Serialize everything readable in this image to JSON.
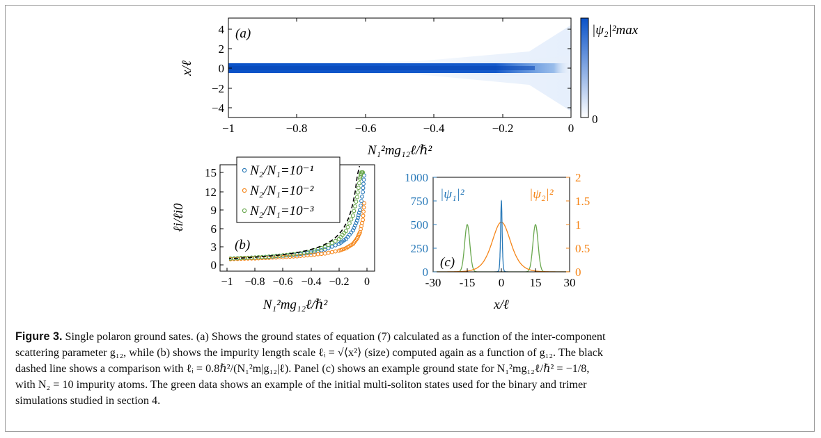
{
  "colors": {
    "blue": "#2a7ab9",
    "orange": "#f58518",
    "green": "#6aa84f",
    "link": "#1f6fb4",
    "heat": "#0a52c8"
  },
  "panel_a": {
    "label": "(a)",
    "ylabel": "x/ℓ",
    "xlabel": "N₁²mg₁₂ℓ/ℏ²",
    "colorbar_top": "|ψ₂|²max",
    "colorbar_bottom": "0"
  },
  "panel_b": {
    "label": "(b)",
    "ylabel": "ℓi/ℓi0",
    "xlabel": "N₁²mg₁₂ℓ/ℏ²",
    "legend": [
      "N₂/N₁=10⁻¹",
      "N₂/N₁=10⁻²",
      "N₂/N₁=10⁻³"
    ]
  },
  "panel_c": {
    "label": "(c)",
    "xlabel": "x/ℓ",
    "left_series": "|ψ₁|²",
    "right_series": "|ψ₂|²"
  },
  "chart_data": [
    {
      "type": "heatmap",
      "xlim": [
        -1,
        0
      ],
      "ylim": [
        -5,
        5
      ],
      "xticks": [
        "−1",
        "−0.8",
        "−0.6",
        "−0.4",
        "−0.2",
        "0"
      ],
      "yticks": [
        "4",
        "2",
        "0",
        "−2",
        "−4"
      ],
      "colorbar": [
        "0",
        "|ψ₂|²max"
      ]
    },
    {
      "type": "scatter",
      "xlim": [
        -1.05,
        0.05
      ],
      "ylim": [
        0,
        15
      ],
      "xticks": [
        "−1",
        "−0.8",
        "−0.6",
        "−0.4",
        "−0.2",
        "0"
      ],
      "yticks": [
        "0",
        "3",
        "6",
        "9",
        "12",
        "15"
      ],
      "series": [
        {
          "name": "N₂/N₁=10⁻¹",
          "x": [
            -1.0,
            -0.9,
            -0.8,
            -0.7,
            -0.6,
            -0.5,
            -0.4,
            -0.3,
            -0.2,
            -0.15,
            -0.1,
            -0.07,
            -0.05,
            -0.03,
            -0.02
          ],
          "y": [
            1.0,
            1.1,
            1.2,
            1.3,
            1.5,
            1.7,
            2.0,
            2.5,
            3.4,
            4.2,
            5.6,
            7.2,
            8.9,
            11.8,
            14.5
          ]
        },
        {
          "name": "N₂/N₁=10⁻²",
          "x": [
            -1.0,
            -0.9,
            -0.8,
            -0.7,
            -0.6,
            -0.5,
            -0.4,
            -0.3,
            -0.2,
            -0.15,
            -0.1,
            -0.07,
            -0.05,
            -0.03,
            -0.02
          ],
          "y": [
            0.9,
            1.0,
            1.05,
            1.15,
            1.25,
            1.4,
            1.6,
            1.85,
            2.3,
            2.7,
            3.4,
            4.3,
            5.3,
            7.3,
            10.0
          ]
        },
        {
          "name": "N₂/N₁=10⁻³",
          "x": [
            -1.0,
            -0.9,
            -0.8,
            -0.7,
            -0.6,
            -0.5,
            -0.4,
            -0.3,
            -0.2,
            -0.15,
            -0.1,
            -0.07,
            -0.05,
            -0.04,
            -0.03
          ],
          "y": [
            1.0,
            1.1,
            1.2,
            1.35,
            1.55,
            1.8,
            2.2,
            2.9,
            4.2,
            5.5,
            8.0,
            11.0,
            14.0,
            15.0,
            15.0
          ]
        }
      ],
      "reference": {
        "style": "dashed",
        "color": "#000000"
      }
    },
    {
      "type": "line",
      "xlim": [
        -30,
        30
      ],
      "left_ylim": [
        0,
        1000
      ],
      "right_ylim": [
        0,
        2
      ],
      "xticks": [
        "-30",
        "-15",
        "0",
        "15",
        "30"
      ],
      "left_yticks": [
        "0",
        "250",
        "500",
        "750",
        "1000"
      ],
      "right_yticks": [
        "0",
        "0.5",
        "1",
        "1.5",
        "2"
      ],
      "series": [
        {
          "name": "|ψ₁|²",
          "axis": "left",
          "peak_x": 0,
          "peak_y": 750
        },
        {
          "name": "|ψ₂|²",
          "axis": "right",
          "peak_x": 0,
          "peak_y": 1.05
        },
        {
          "axis": "right",
          "peaks": [
            {
              "x": -15,
              "y": 1.0
            },
            {
              "x": 15,
              "y": 1.0
            }
          ]
        }
      ]
    }
  ],
  "caption": {
    "label": "Figure 3.",
    "line1": " Single polaron ground sates. (a) Shows the ground states of equation (7) calculated as a function of the inter-component",
    "line2": "scattering parameter g₁₂, while (b) shows the impurity length scale ℓᵢ = √⟨x²⟩ (size) computed again as a function of g₁₂. The black",
    "line3": "dashed line shows a comparison with ℓᵢ = 0.8ℏ²/(N₁²m|g₁₂|ℓ). Panel (c) shows an example ground state for N₁²mg₁₂ℓ/ℏ² = −1/8,",
    "line4": "with N₂ = 10 impurity atoms. The green data shows an example of the initial multi-soliton states used for the binary and trimer",
    "line5": "simulations studied in section 4."
  }
}
